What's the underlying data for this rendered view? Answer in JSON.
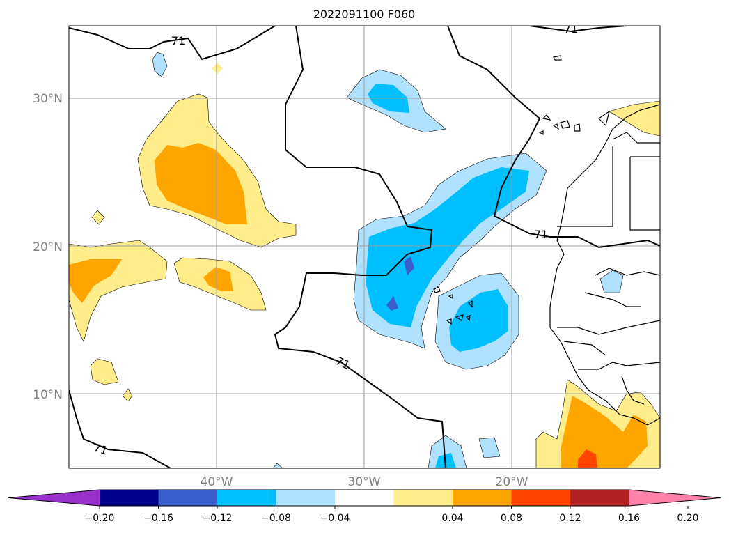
{
  "title": "2022091100 F060",
  "contour": {
    "label": "71",
    "color": "#000000"
  },
  "lat_labels": [
    "30°N",
    "20°N",
    "10°N"
  ],
  "lon_labels": [
    "40°W",
    "30°W",
    "20°W"
  ],
  "colorbar": {
    "ticks": [
      "−0.20",
      "−0.16",
      "−0.12",
      "−0.08",
      "−0.04",
      "0.04",
      "0.08",
      "0.12",
      "0.16",
      "0.20"
    ],
    "colors": [
      "#9932cc",
      "#00008b",
      "#3a5fcd",
      "#00bfff",
      "#b0e2ff",
      "#ffffff",
      "#ffec8b",
      "#ffa500",
      "#ff4500",
      "#b22222",
      "#ff82ab"
    ]
  },
  "fill_colors": {
    "lightblue": "#b0e2ff",
    "blue": "#00bfff",
    "darkblue": "#3a5fcd",
    "yellow": "#ffec8b",
    "orange": "#ffa500",
    "red": "#ff4500"
  }
}
